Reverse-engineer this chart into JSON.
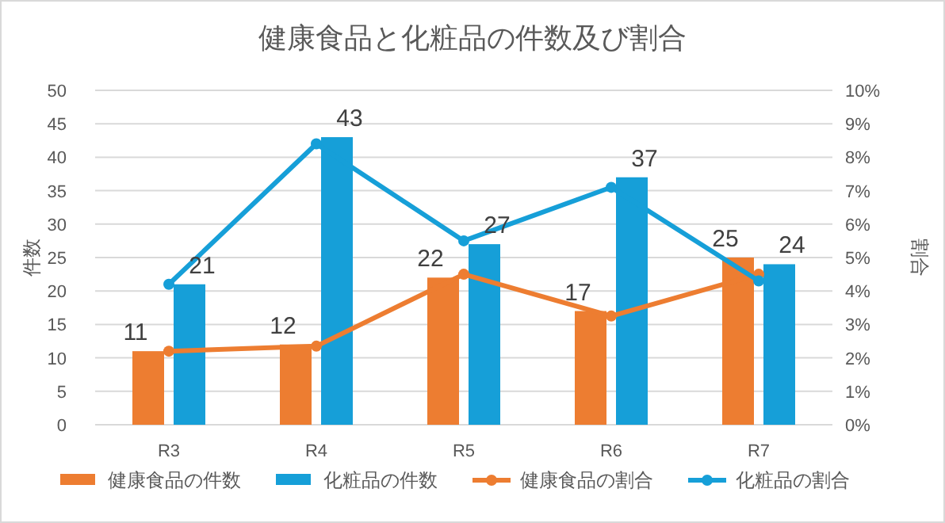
{
  "chart_data": {
    "type": "bar",
    "title": "健康食品と化粧品の件数及び割合",
    "ylabel": "件数",
    "y2label": "割合",
    "categories": [
      "R3",
      "R4",
      "R5",
      "R6",
      "R7"
    ],
    "series": [
      {
        "name": "健康食品の件数",
        "color": "#ed7d31",
        "values": [
          11,
          12,
          22,
          17,
          25
        ],
        "value_labels": [
          "11",
          "12",
          "22",
          "17",
          "25"
        ]
      },
      {
        "name": "化粧品の件数",
        "color": "#169fd8",
        "values": [
          21,
          43,
          27,
          37,
          24
        ],
        "value_labels": [
          "21",
          "43",
          "27",
          "37",
          "24"
        ]
      },
      {
        "name": "健康食品の割合",
        "type": "line",
        "axis": "y2",
        "marker": "circle",
        "color": "#ed7d31",
        "values": [
          2.2,
          2.35,
          4.5,
          3.25,
          4.5
        ]
      },
      {
        "name": "化粧品の割合",
        "type": "line",
        "axis": "y2",
        "marker": "circle",
        "color": "#169fd8",
        "values": [
          4.2,
          8.4,
          5.5,
          7.1,
          4.3
        ]
      }
    ],
    "ylim": [
      0,
      50
    ],
    "yticks": [
      0,
      5,
      10,
      15,
      20,
      25,
      30,
      35,
      40,
      45,
      50
    ],
    "y2lim": [
      0,
      10
    ],
    "y2ticks": [
      {
        "value": 0,
        "label": "0%"
      },
      {
        "value": 1,
        "label": "1%"
      },
      {
        "value": 2,
        "label": "2%"
      },
      {
        "value": 3,
        "label": "3%"
      },
      {
        "value": 4,
        "label": "4%"
      },
      {
        "value": 5,
        "label": "5%"
      },
      {
        "value": 6,
        "label": "6%"
      },
      {
        "value": 7,
        "label": "7%"
      },
      {
        "value": 8,
        "label": "8%"
      },
      {
        "value": 9,
        "label": "9%"
      },
      {
        "value": 10,
        "label": "10%"
      }
    ],
    "grid": "y",
    "legend": "bottom"
  }
}
